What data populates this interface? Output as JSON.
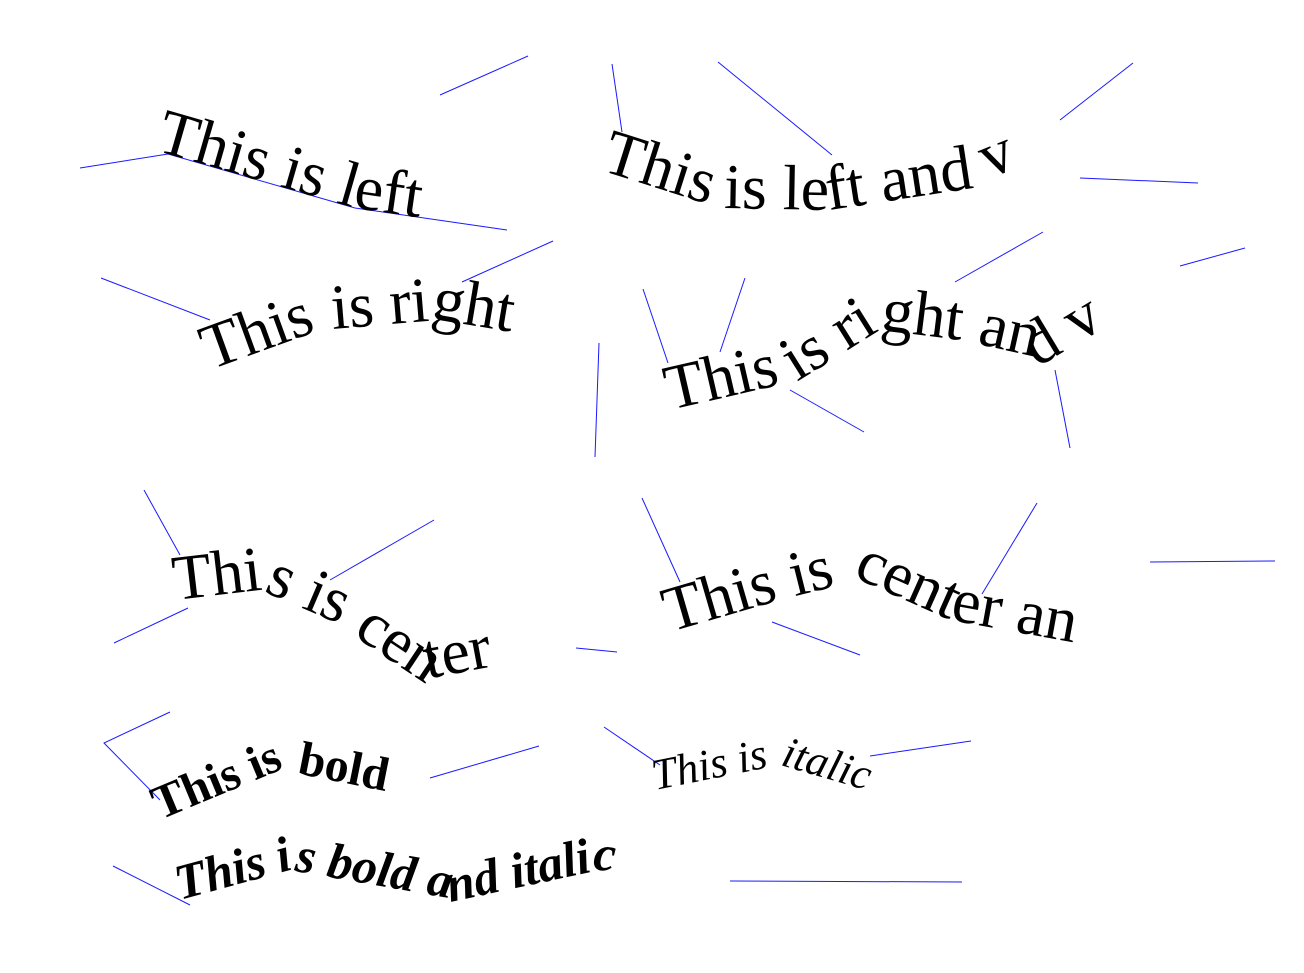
{
  "colors": {
    "background": "#ffffff",
    "text": "#000000",
    "guide": "#1a1aff"
  },
  "samples": {
    "left": "This is left",
    "left_v": "This is left and v",
    "right": "This is right",
    "right_v": "This is right and v",
    "center": "This is center",
    "center_an": "This is center an",
    "bold": "This is bold",
    "italic": "This is italic",
    "bold_italic": "This is bold and italic"
  }
}
